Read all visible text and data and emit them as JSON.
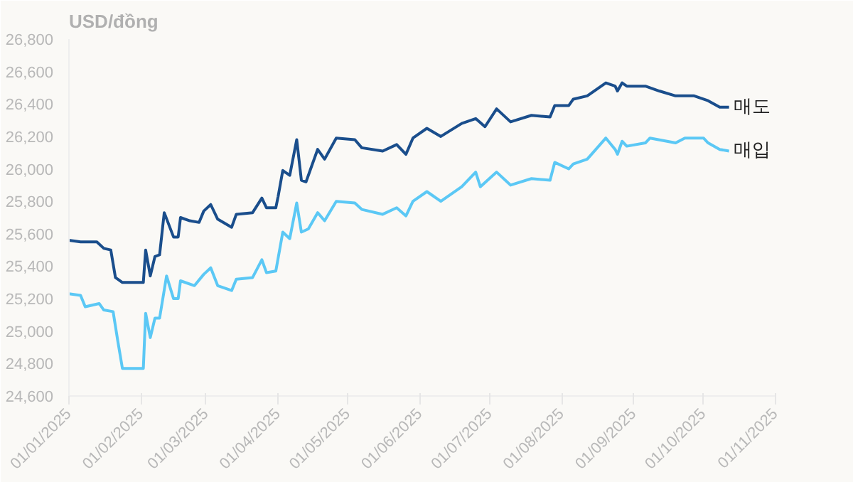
{
  "chart_data": {
    "type": "line",
    "ylabel": "USD/đồng",
    "xlim": [
      "2025-01-01",
      "2025-11-01"
    ],
    "ylim": [
      24600,
      26800
    ],
    "yticks": [
      {
        "value": 24600,
        "label": "24,600"
      },
      {
        "value": 24800,
        "label": "24,800"
      },
      {
        "value": 25000,
        "label": "25,000"
      },
      {
        "value": 25200,
        "label": "25,200"
      },
      {
        "value": 25400,
        "label": "25,400"
      },
      {
        "value": 25600,
        "label": "25,600"
      },
      {
        "value": 25800,
        "label": "25,800"
      },
      {
        "value": 26000,
        "label": "26,000"
      },
      {
        "value": 26200,
        "label": "26,200"
      },
      {
        "value": 26400,
        "label": "26,400"
      },
      {
        "value": 26600,
        "label": "26,600"
      },
      {
        "value": 26800,
        "label": "26,800"
      }
    ],
    "xticks": [
      {
        "value": "2025-01-01",
        "label": "01/01/2025"
      },
      {
        "value": "2025-02-01",
        "label": "01/02/2025"
      },
      {
        "value": "2025-03-01",
        "label": "01/03/2025"
      },
      {
        "value": "2025-04-01",
        "label": "01/04/2025"
      },
      {
        "value": "2025-05-01",
        "label": "01/05/2025"
      },
      {
        "value": "2025-06-01",
        "label": "01/06/2025"
      },
      {
        "value": "2025-07-01",
        "label": "01/07/2025"
      },
      {
        "value": "2025-08-01",
        "label": "01/08/2025"
      },
      {
        "value": "2025-09-01",
        "label": "01/09/2025"
      },
      {
        "value": "2025-10-01",
        "label": "01/10/2025"
      },
      {
        "value": "2025-11-01",
        "label": "01/11/2025"
      }
    ],
    "grid": false,
    "legend": false,
    "marker": "none",
    "line_style": "solid",
    "series": [
      {
        "name": "매도",
        "color": "#1a4e8c",
        "x": [
          "2025-01-01",
          "2025-01-06",
          "2025-01-13",
          "2025-01-16",
          "2025-01-19",
          "2025-01-21",
          "2025-01-24",
          "2025-02-02",
          "2025-02-03",
          "2025-02-05",
          "2025-02-07",
          "2025-02-09",
          "2025-02-11",
          "2025-02-15",
          "2025-02-17",
          "2025-02-18",
          "2025-02-22",
          "2025-02-26",
          "2025-02-28",
          "2025-03-03",
          "2025-03-06",
          "2025-03-12",
          "2025-03-14",
          "2025-03-21",
          "2025-03-25",
          "2025-03-27",
          "2025-03-31",
          "2025-04-01",
          "2025-04-03",
          "2025-04-06",
          "2025-04-09",
          "2025-04-11",
          "2025-04-13",
          "2025-04-15",
          "2025-04-18",
          "2025-04-21",
          "2025-04-26",
          "2025-05-04",
          "2025-05-07",
          "2025-05-16",
          "2025-05-22",
          "2025-05-26",
          "2025-05-29",
          "2025-05-30",
          "2025-06-04",
          "2025-06-10",
          "2025-06-19",
          "2025-06-25",
          "2025-06-29",
          "2025-07-04",
          "2025-07-10",
          "2025-07-19",
          "2025-07-27",
          "2025-07-29",
          "2025-08-04",
          "2025-08-06",
          "2025-08-12",
          "2025-08-20",
          "2025-08-24",
          "2025-08-25",
          "2025-08-27",
          "2025-08-29",
          "2025-09-06",
          "2025-09-12",
          "2025-09-19",
          "2025-09-27",
          "2025-10-03",
          "2025-10-08",
          "2025-10-12"
        ],
        "values": [
          25560,
          25550,
          25550,
          25510,
          25500,
          25330,
          25300,
          25300,
          25500,
          25340,
          25460,
          25470,
          25730,
          25580,
          25580,
          25700,
          25680,
          25670,
          25740,
          25780,
          25690,
          25640,
          25720,
          25730,
          25820,
          25760,
          25760,
          25830,
          25990,
          25960,
          26180,
          25930,
          25920,
          26000,
          26120,
          26060,
          26190,
          26180,
          26130,
          26110,
          26150,
          26090,
          26190,
          26200,
          26250,
          26200,
          26280,
          26310,
          26260,
          26370,
          26290,
          26330,
          26320,
          26390,
          26390,
          26430,
          26450,
          26530,
          26510,
          26480,
          26530,
          26510,
          26510,
          26480,
          26450,
          26450,
          26420,
          26380,
          26380
        ]
      },
      {
        "name": "매입",
        "color": "#5bc8f5",
        "x": [
          "2025-01-01",
          "2025-01-06",
          "2025-01-08",
          "2025-01-14",
          "2025-01-16",
          "2025-01-20",
          "2025-01-22",
          "2025-01-24",
          "2025-02-02",
          "2025-02-03",
          "2025-02-05",
          "2025-02-07",
          "2025-02-09",
          "2025-02-12",
          "2025-02-15",
          "2025-02-17",
          "2025-02-18",
          "2025-02-24",
          "2025-02-28",
          "2025-03-03",
          "2025-03-06",
          "2025-03-12",
          "2025-03-14",
          "2025-03-21",
          "2025-03-25",
          "2025-03-27",
          "2025-03-31",
          "2025-04-03",
          "2025-04-06",
          "2025-04-09",
          "2025-04-11",
          "2025-04-14",
          "2025-04-18",
          "2025-04-21",
          "2025-04-26",
          "2025-05-04",
          "2025-05-07",
          "2025-05-16",
          "2025-05-22",
          "2025-05-26",
          "2025-05-29",
          "2025-05-30",
          "2025-06-04",
          "2025-06-10",
          "2025-06-19",
          "2025-06-25",
          "2025-06-27",
          "2025-07-04",
          "2025-07-10",
          "2025-07-19",
          "2025-07-27",
          "2025-07-29",
          "2025-08-04",
          "2025-08-06",
          "2025-08-12",
          "2025-08-20",
          "2025-08-24",
          "2025-08-25",
          "2025-08-27",
          "2025-08-29",
          "2025-09-06",
          "2025-09-08",
          "2025-09-19",
          "2025-09-23",
          "2025-09-27",
          "2025-10-01",
          "2025-10-03",
          "2025-10-08",
          "2025-10-12"
        ],
        "values": [
          25230,
          25220,
          25150,
          25170,
          25130,
          25120,
          24940,
          24770,
          24770,
          25110,
          24960,
          25080,
          25080,
          25340,
          25200,
          25200,
          25310,
          25280,
          25350,
          25390,
          25280,
          25250,
          25320,
          25330,
          25440,
          25360,
          25370,
          25610,
          25570,
          25790,
          25610,
          25630,
          25730,
          25680,
          25800,
          25790,
          25750,
          25720,
          25760,
          25710,
          25800,
          25810,
          25860,
          25800,
          25890,
          25980,
          25890,
          25980,
          25900,
          25940,
          25930,
          26040,
          26000,
          26030,
          26060,
          26190,
          26120,
          26090,
          26170,
          26140,
          26160,
          26190,
          26160,
          26190,
          26190,
          26190,
          26160,
          26120,
          26110
        ]
      }
    ]
  }
}
